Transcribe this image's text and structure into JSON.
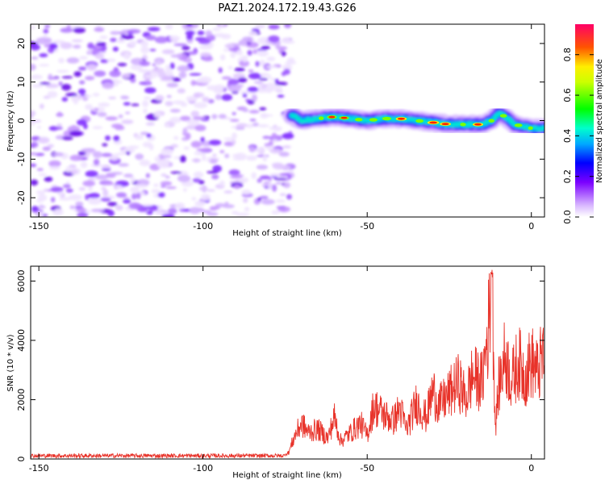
{
  "title": "PAZ1.2024.172.19.43.G26",
  "chart_data": [
    {
      "type": "heatmap",
      "xlabel": "Height of straight line (km)",
      "ylabel": "Frequency (Hz)",
      "xlim": [
        -152.5,
        4
      ],
      "ylim": [
        -25,
        25
      ],
      "xticks": [
        -150,
        -100,
        -50,
        0
      ],
      "yticks": [
        -20,
        -10,
        0,
        10,
        20
      ],
      "grid": false,
      "noise_region": {
        "x": [
          -152.5,
          -73
        ],
        "y": [
          -25,
          25
        ]
      },
      "signal_track": {
        "x": [
          -73,
          -70,
          -65,
          -60,
          -55,
          -50,
          -45,
          -40,
          -35,
          -30,
          -25,
          -20,
          -15,
          -12,
          -10,
          -8,
          -5,
          0,
          4
        ],
        "y": [
          1.5,
          0,
          0.5,
          1,
          0.5,
          0,
          0.5,
          0.5,
          0,
          -0.5,
          -1,
          -1,
          -1,
          0,
          2,
          1,
          -1,
          -2,
          -2
        ]
      },
      "colorbar": {
        "label": "Normalized spectral amplitude",
        "range": [
          0,
          0.95
        ],
        "ticks": [
          0.0,
          0.2,
          0.4,
          0.6,
          0.8
        ]
      }
    },
    {
      "type": "line",
      "xlabel": "Height of straight line (km)",
      "ylabel": "SNR (10 * v/v)",
      "xlim": [
        -152.5,
        4
      ],
      "ylim": [
        0,
        6500
      ],
      "xticks": [
        -150,
        -100,
        -50,
        0
      ],
      "yticks": [
        0,
        2000,
        4000,
        6000
      ],
      "grid": false,
      "color": "#e8332a",
      "series": [
        {
          "x": [
            -152.5,
            -140,
            -120,
            -100,
            -80,
            -74,
            -72,
            -70,
            -68,
            -65,
            -62,
            -60,
            -58,
            -55,
            -52,
            -50,
            -48,
            -45,
            -42,
            -40,
            -38,
            -35,
            -32,
            -30,
            -28,
            -25,
            -22,
            -20,
            -18,
            -15,
            -13,
            -12,
            -11,
            -10,
            -8,
            -6,
            -4,
            -2,
            0,
            2,
            4
          ],
          "y": [
            100,
            120,
            110,
            130,
            120,
            200,
            800,
            1200,
            900,
            1000,
            700,
            1400,
            600,
            900,
            1200,
            800,
            1800,
            1500,
            1300,
            1700,
            1000,
            1900,
            1400,
            2300,
            1800,
            2200,
            2600,
            2000,
            2800,
            2600,
            4500,
            6500,
            1000,
            2400,
            3500,
            2600,
            3300,
            2800,
            3300,
            2900,
            3700
          ]
        }
      ]
    }
  ]
}
